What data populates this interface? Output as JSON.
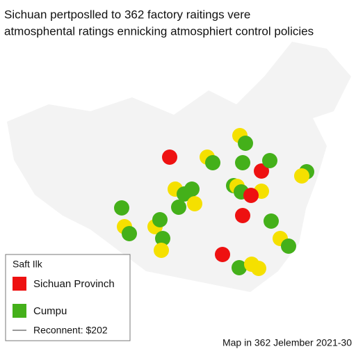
{
  "header": {
    "title_lines": [
      "Sichuan pertposlled to 362 factory raitings vere",
      "atmosphental ratings ennicking atmosphiert control policies"
    ]
  },
  "legend": {
    "title": "Saft Ilk",
    "items": [
      {
        "label": "Sichuan Provinch",
        "color": "#ee1111"
      },
      {
        "label": "Cumpu",
        "color": "#44b01a"
      },
      {
        "label": "Reconnent: $202"
      }
    ]
  },
  "footer": "Map in 362 Jelember 2021-30"
}
